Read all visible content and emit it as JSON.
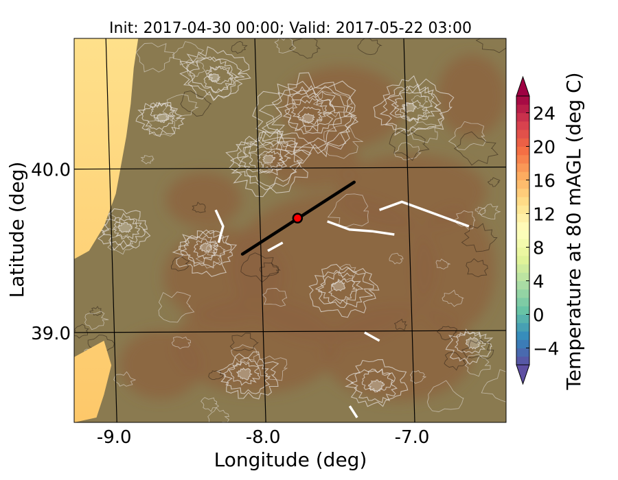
{
  "chart_data": {
    "type": "heatmap",
    "title": "Init: 2017-04-30 00:00; Valid: 2017-05-22 03:00",
    "xlabel": "Longitude (deg)",
    "ylabel": "Latitude (deg)",
    "xlim": [
      -9.25,
      -6.35
    ],
    "ylim": [
      38.45,
      40.8
    ],
    "x_ticks": [
      {
        "value": -9.0,
        "label": "-9.0"
      },
      {
        "value": -8.0,
        "label": "-8.0"
      },
      {
        "value": -7.0,
        "label": "-7.0"
      }
    ],
    "y_ticks": [
      {
        "value": 40.0,
        "label": "40.0"
      },
      {
        "value": 39.0,
        "label": "39.0"
      }
    ],
    "grid": true,
    "cross_section": {
      "start": [
        -8.12,
        39.48
      ],
      "end": [
        -7.37,
        39.92
      ],
      "color": "#000000"
    },
    "point": {
      "lon": -7.75,
      "lat": 39.7,
      "color": "#ff0000"
    },
    "colorbar": {
      "label": "Temperature at 80 mAGL (deg C)",
      "min": -6,
      "max": 26,
      "extend": "both",
      "ticks": [
        {
          "value": -4,
          "label": "−4"
        },
        {
          "value": 0,
          "label": "0"
        },
        {
          "value": 4,
          "label": "4"
        },
        {
          "value": 8,
          "label": "8"
        },
        {
          "value": 12,
          "label": "12"
        },
        {
          "value": 16,
          "label": "16"
        },
        {
          "value": 20,
          "label": "20"
        },
        {
          "value": 24,
          "label": "24"
        }
      ],
      "colormap": "Spectral_r",
      "colors": [
        "#5e4fa2",
        "#3288bd",
        "#66c2a5",
        "#abdda4",
        "#e6f598",
        "#ffffbf",
        "#fee08b",
        "#fdae61",
        "#f46d43",
        "#d53e4f",
        "#9e0142"
      ]
    },
    "field_colors": {
      "ocean": "#fee08b",
      "ocean_warm": "#fdc86a",
      "land_cool": "#8a7a50",
      "land_warm": "#8c6440",
      "water_bodies": "#ffffff"
    }
  }
}
